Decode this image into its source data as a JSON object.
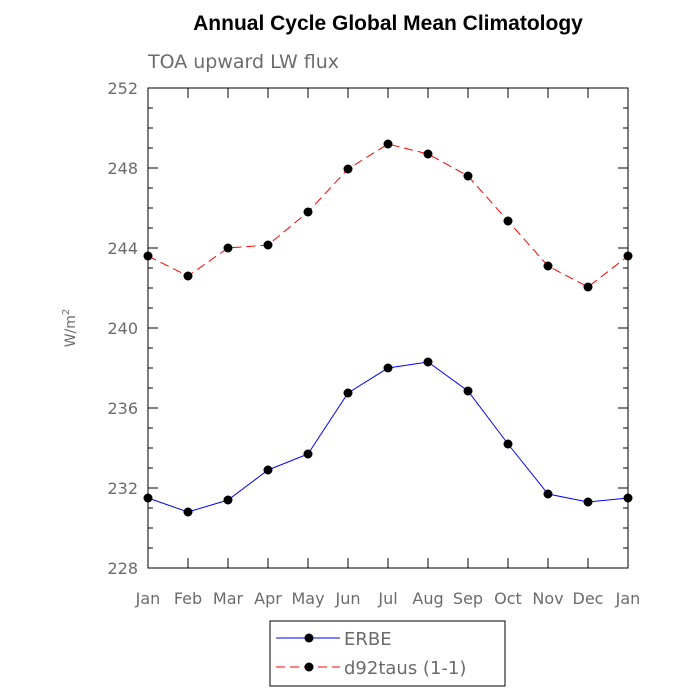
{
  "chart_data": {
    "type": "line",
    "title": "Annual Cycle Global Mean Climatology",
    "subtitle": "TOA upward LW flux",
    "xlabel": "",
    "ylabel": "W/m",
    "ylabel_superscript": "2",
    "categories": [
      "Jan",
      "Feb",
      "Mar",
      "Apr",
      "May",
      "Jun",
      "Jul",
      "Aug",
      "Sep",
      "Oct",
      "Nov",
      "Dec",
      "Jan"
    ],
    "ylim": [
      228,
      252
    ],
    "yticks": [
      228,
      232,
      236,
      240,
      244,
      248,
      252
    ],
    "ytick_labels": [
      "228",
      "232",
      "236",
      "240",
      "244",
      "248",
      "252"
    ],
    "y_minor_step": 1,
    "grid": false,
    "legend_position": "bottom-center",
    "series": [
      {
        "name": "ERBE",
        "color": "#0000ff",
        "dashed": false,
        "marker": "filled-circle",
        "values": [
          231.5,
          230.8,
          231.4,
          232.9,
          233.7,
          236.75,
          238.0,
          238.3,
          236.85,
          234.2,
          231.7,
          231.3,
          231.5
        ]
      },
      {
        "name": "d92taus (1-1)",
        "color": "#ff0000",
        "dashed": true,
        "marker": "filled-circle",
        "values": [
          243.6,
          242.6,
          244.0,
          244.15,
          245.8,
          247.95,
          249.2,
          248.7,
          247.6,
          245.35,
          243.1,
          242.05,
          243.6
        ]
      }
    ]
  }
}
